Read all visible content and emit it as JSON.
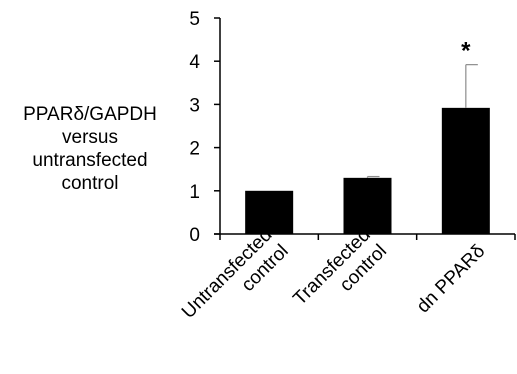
{
  "chart_data": {
    "type": "bar",
    "title": "",
    "xlabel": "",
    "ylabel_lines": [
      "PPARδ/GAPDH",
      "versus",
      "untransfected",
      "control"
    ],
    "categories": [
      [
        "Untransfected",
        "control"
      ],
      [
        "Transfected",
        "control"
      ],
      [
        "dn PPARδ"
      ]
    ],
    "values": [
      1.0,
      1.3,
      2.92
    ],
    "error_upper": [
      0.0,
      0.03,
      1.0
    ],
    "annotations": [
      "",
      "",
      "*"
    ],
    "ylim": [
      0,
      5
    ],
    "yticks": [
      "0",
      "1",
      "2",
      "3",
      "4",
      "5"
    ],
    "grid": false,
    "colors": {
      "bar": "#000000",
      "axis": "#000000",
      "error_bar": "#8c8c8c"
    }
  }
}
